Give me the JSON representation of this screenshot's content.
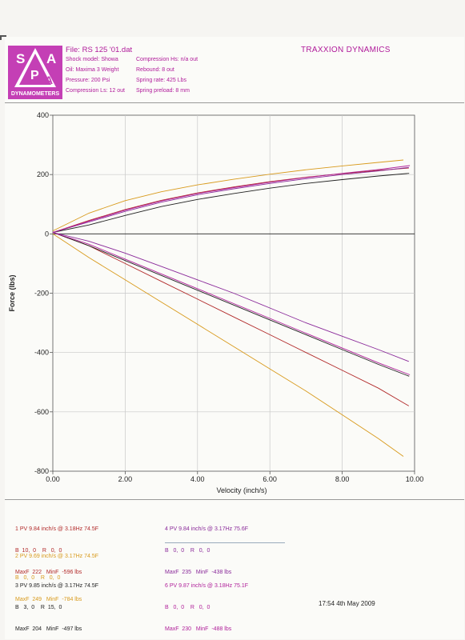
{
  "header": {
    "logo_letters": [
      "S",
      "A",
      "P",
      "A"
    ],
    "logo_caption": "DYNAMOMETERS",
    "file": "File: RS 125 '01.dat",
    "company": "TRAXXION DYNAMICS",
    "col1": [
      "Shock model: Showa",
      "Oil: Maxima 3 Weight",
      "Pressure: 200 Psi",
      "Compression Ls: 12 out"
    ],
    "col2": [
      "Compression Hs: n/a out",
      "Rebound: 8 out",
      "Spring rate: 425 Lbs",
      "Spring preload: 8 mm"
    ]
  },
  "colors": {
    "brand": "#c43fb5",
    "run1": "#b22a2a",
    "run2": "#d89a1c",
    "run3": "#222222",
    "run4": "#8a2a9a",
    "run6": "#b0209a"
  },
  "legend": [
    {
      "id": "run1",
      "l1": "1 PV 9.84 inch/s @ 3.18Hz 74.5F",
      "l2": "B  10,  0    R   0,  0",
      "l3": "MaxF  222   MinF  -596 lbs"
    },
    {
      "id": "run2",
      "l1": "2 PV 9.69 inch/s @ 3.17Hz 74.5F",
      "l2": "B   0,  0    R   0,  0",
      "l3": "MaxF  249   MinF  -784 lbs"
    },
    {
      "id": "run3",
      "l1": "3 PV 9.85 inch/s @ 3.17Hz 74.5F",
      "l2": "B   3,  0    R  15,  0",
      "l3": "MaxF  204   MinF  -497 lbs"
    },
    {
      "id": "run4",
      "l1": "4 PV 9.84 inch/s @ 3.17Hz 75.6F",
      "l2": "B   0,  0    R   0,  0",
      "l3": "MaxF  235   MinF  -438 lbs"
    },
    {
      "id": "run6",
      "l1": "6 PV 9.87 inch/s @ 3.18Hz 75.1F",
      "l2": "B   0,  0    R   0,  0",
      "l3": "MaxF  230   MinF  -488 lbs"
    }
  ],
  "timestamp": "17:54  4th May 2009",
  "chart_data": {
    "type": "line",
    "xlabel": "Velocity (inch/s)",
    "ylabel": "Force (lbs)",
    "xlim": [
      0,
      10
    ],
    "ylim": [
      -800,
      400
    ],
    "xticks": [
      "0.00",
      "2.00",
      "4.00",
      "6.00",
      "8.00",
      "10.00"
    ],
    "yticks": [
      "400",
      "200",
      "0",
      "-200",
      "-400",
      "-600",
      "-800"
    ],
    "grid": true,
    "series": [
      {
        "name": "1",
        "color": "#b22a2a",
        "x": [
          0,
          1,
          2,
          3,
          4,
          5,
          6,
          7,
          8,
          9,
          9.84
        ],
        "y": [
          5,
          45,
          82,
          113,
          138,
          158,
          176,
          191,
          203,
          214,
          222
        ],
        "lower_y": [
          5,
          -40,
          -100,
          -160,
          -220,
          -280,
          -340,
          -400,
          -460,
          -520,
          -580
        ]
      },
      {
        "name": "2",
        "color": "#d89a1c",
        "x": [
          0,
          1,
          2,
          3,
          4,
          5,
          6,
          7,
          8,
          9,
          9.69
        ],
        "y": [
          10,
          70,
          112,
          142,
          165,
          184,
          201,
          216,
          229,
          241,
          249
        ],
        "lower_y": [
          0,
          -80,
          -155,
          -230,
          -305,
          -380,
          -455,
          -530,
          -610,
          -690,
          -750
        ]
      },
      {
        "name": "3",
        "color": "#222222",
        "x": [
          0,
          1,
          2,
          3,
          4,
          5,
          6,
          7,
          8,
          9,
          9.85
        ],
        "y": [
          5,
          30,
          62,
          92,
          116,
          136,
          154,
          170,
          183,
          195,
          204
        ],
        "lower_y": [
          5,
          -40,
          -90,
          -140,
          -190,
          -240,
          -290,
          -340,
          -390,
          -440,
          -480
        ]
      },
      {
        "name": "4",
        "color": "#8a2a9a",
        "x": [
          0,
          1,
          2,
          3,
          4,
          5,
          6,
          7,
          8,
          9,
          9.84
        ],
        "y": [
          5,
          40,
          76,
          107,
          132,
          152,
          170,
          186,
          200,
          212,
          224
        ],
        "lower_y": [
          5,
          -25,
          -65,
          -110,
          -155,
          -200,
          -250,
          -300,
          -345,
          -390,
          -430
        ]
      },
      {
        "name": "6",
        "color": "#b0209a",
        "x": [
          0,
          1,
          2,
          3,
          4,
          5,
          6,
          7,
          8,
          9,
          9.87
        ],
        "y": [
          5,
          43,
          80,
          111,
          136,
          156,
          174,
          190,
          204,
          217,
          230
        ],
        "lower_y": [
          5,
          -35,
          -85,
          -135,
          -185,
          -235,
          -285,
          -335,
          -385,
          -435,
          -475
        ]
      }
    ]
  }
}
